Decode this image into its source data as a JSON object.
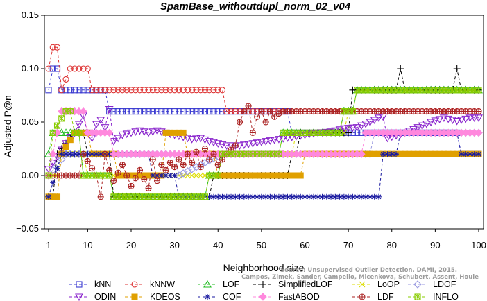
{
  "chart_data": {
    "type": "line",
    "title": "SpamBase_withoutdupl_norm_02_v04",
    "xlabel": "Neighborhood size",
    "ylabel": "Adjusted P@n",
    "xlim": [
      1,
      100
    ],
    "ylim": [
      -0.05,
      0.15
    ],
    "x_ticks": [
      1,
      10,
      20,
      30,
      40,
      50,
      60,
      70,
      80,
      90,
      100
    ],
    "y_ticks": [
      -0.05,
      0.0,
      0.05,
      0.1,
      0.15
    ],
    "y_tick_labels": [
      "−0.05",
      "0.00",
      "0.05",
      "0.10",
      "0.15"
    ],
    "legend_position": "bottom",
    "watermark": [
      "Source: Unsupervised Outlier Detection. DAMI, 2015.",
      "Campos, Zimek, Sander, Campello, Micenkova, Schubert, Assent, Houle"
    ],
    "series": [
      {
        "name": "kNN",
        "color": "#3a3ad0",
        "marker": "square",
        "points": [
          [
            1,
            0.08
          ],
          [
            2,
            0.1
          ],
          [
            3,
            0.1
          ],
          [
            4,
            0.08
          ],
          [
            14,
            0.08
          ],
          [
            15,
            0.06
          ],
          [
            56,
            0.06
          ],
          [
            57,
            0.04
          ],
          [
            95,
            0.04
          ],
          [
            96,
            0.02
          ],
          [
            100,
            0.02
          ]
        ]
      },
      {
        "name": "kNNW",
        "color": "#dd3333",
        "marker": "circle",
        "points": [
          [
            1,
            0.1
          ],
          [
            2,
            0.12
          ],
          [
            3,
            0.12
          ],
          [
            4,
            0.08
          ],
          [
            6,
            0.1
          ],
          [
            10,
            0.1
          ],
          [
            11,
            0.08
          ],
          [
            41,
            0.08
          ],
          [
            42,
            0.06
          ],
          [
            100,
            0.06
          ]
        ]
      },
      {
        "name": "LOF",
        "color": "#22bb22",
        "marker": "triangle-up",
        "points": [
          [
            1,
            0.02
          ],
          [
            2,
            0.04
          ],
          [
            8,
            0.04
          ],
          [
            9,
            0.0
          ],
          [
            15,
            0.0
          ],
          [
            16,
            -0.02
          ],
          [
            37,
            -0.02
          ],
          [
            38,
            0.0
          ],
          [
            40,
            0.0
          ],
          [
            41,
            0.02
          ],
          [
            54,
            0.02
          ],
          [
            55,
            0.04
          ],
          [
            68,
            0.04
          ],
          [
            69,
            0.06
          ],
          [
            71,
            0.06
          ],
          [
            72,
            0.08
          ],
          [
            100,
            0.08
          ]
        ]
      },
      {
        "name": "SimplifiedLOF",
        "color": "#000000",
        "marker": "plus",
        "points": [
          [
            1,
            -0.02
          ],
          [
            2,
            -0.02
          ],
          [
            3,
            0.02
          ],
          [
            7,
            0.04
          ],
          [
            9,
            0.04
          ],
          [
            10,
            0.02
          ],
          [
            15,
            0.02
          ],
          [
            16,
            -0.02
          ],
          [
            38,
            -0.02
          ],
          [
            39,
            0.0
          ],
          [
            56,
            0.0
          ],
          [
            57,
            0.02
          ],
          [
            58,
            0.02
          ],
          [
            59,
            0.04
          ],
          [
            70,
            0.04
          ],
          [
            71,
            0.08
          ],
          [
            81,
            0.08
          ],
          [
            82,
            0.1
          ],
          [
            83,
            0.08
          ],
          [
            94,
            0.08
          ],
          [
            95,
            0.1
          ],
          [
            96,
            0.08
          ],
          [
            100,
            0.08
          ]
        ]
      },
      {
        "name": "LoOP",
        "color": "#dddd00",
        "marker": "x",
        "points": [
          [
            1,
            0.0
          ],
          [
            3,
            0.0
          ],
          [
            4,
            0.02
          ],
          [
            9,
            0.02
          ],
          [
            10,
            0.0
          ],
          [
            40,
            0.0
          ],
          [
            41,
            0.02
          ],
          [
            57,
            0.02
          ],
          [
            58,
            0.04
          ],
          [
            69,
            0.04
          ],
          [
            70,
            0.06
          ],
          [
            71,
            0.06
          ],
          [
            72,
            0.08
          ],
          [
            100,
            0.08
          ]
        ]
      },
      {
        "name": "LDOF",
        "color": "#9a9ae0",
        "marker": "diamond",
        "points": [
          [
            1,
            0.0
          ],
          [
            5,
            0.02
          ],
          [
            30,
            0.02
          ],
          [
            31,
            0.0
          ],
          [
            41,
            0.02
          ],
          [
            75,
            0.02
          ],
          [
            76,
            0.04
          ],
          [
            100,
            0.04
          ]
        ]
      },
      {
        "name": "ODIN",
        "color": "#8822cc",
        "marker": "triangle-down",
        "points": [
          [
            1,
            0.006
          ],
          [
            2,
            0.012
          ],
          [
            3,
            0.018
          ],
          [
            4,
            0.024
          ],
          [
            5,
            0.03
          ],
          [
            6,
            0.036
          ],
          [
            7,
            0.04
          ],
          [
            8,
            0.048
          ],
          [
            9,
            0.056
          ],
          [
            10,
            0.04
          ],
          [
            11,
            0.035
          ],
          [
            12,
            0.048
          ],
          [
            13,
            0.052
          ],
          [
            14,
            0.045
          ],
          [
            15,
            0.062
          ],
          [
            16,
            0.032
          ],
          [
            18,
            0.038
          ],
          [
            20,
            0.04
          ],
          [
            22,
            0.042
          ],
          [
            24,
            0.04
          ],
          [
            26,
            0.042
          ],
          [
            28,
            0.04
          ],
          [
            30,
            0.038
          ],
          [
            32,
            0.036
          ],
          [
            34,
            0.034
          ],
          [
            36,
            0.035
          ],
          [
            38,
            0.032
          ],
          [
            40,
            0.03
          ],
          [
            42,
            0.028
          ],
          [
            45,
            0.028
          ],
          [
            48,
            0.03
          ],
          [
            51,
            0.032
          ],
          [
            54,
            0.034
          ],
          [
            57,
            0.036
          ],
          [
            60,
            0.038
          ],
          [
            63,
            0.04
          ],
          [
            66,
            0.041
          ],
          [
            69,
            0.044
          ],
          [
            72,
            0.045
          ],
          [
            75,
            0.05
          ],
          [
            77,
            0.054
          ],
          [
            78,
            0.055
          ],
          [
            79,
            0.035
          ],
          [
            83,
            0.04
          ],
          [
            86,
            0.045
          ],
          [
            89,
            0.05
          ],
          [
            92,
            0.054
          ],
          [
            95,
            0.051
          ],
          [
            98,
            0.054
          ],
          [
            100,
            0.054
          ]
        ]
      },
      {
        "name": "KDEOS",
        "color": "#e0a000",
        "marker": "square-filled",
        "points": [
          [
            1,
            -0.02
          ],
          [
            3,
            -0.02
          ],
          [
            4,
            0.02
          ],
          [
            7,
            0.04
          ],
          [
            10,
            0.04
          ],
          [
            11,
            0.02
          ],
          [
            16,
            0.02
          ],
          [
            17,
            0.0
          ],
          [
            27,
            0.0
          ],
          [
            28,
            0.04
          ],
          [
            32,
            0.04
          ],
          [
            33,
            0.02
          ],
          [
            39,
            0.02
          ],
          [
            40,
            0.0
          ],
          [
            58,
            0.0
          ],
          [
            59,
            0.0
          ],
          [
            60,
            0.02
          ],
          [
            95,
            0.02
          ],
          [
            96,
            0.02
          ],
          [
            100,
            0.02
          ]
        ]
      },
      {
        "name": "COF",
        "color": "#1a1aa0",
        "marker": "star",
        "points": [
          [
            1,
            -0.02
          ],
          [
            4,
            0.02
          ],
          [
            24,
            0.02
          ],
          [
            25,
            0.0
          ],
          [
            30,
            0.0
          ],
          [
            31,
            -0.02
          ],
          [
            77,
            -0.02
          ],
          [
            78,
            0.02
          ],
          [
            81,
            0.02
          ],
          [
            82,
            0.04
          ],
          [
            95,
            0.04
          ],
          [
            96,
            0.02
          ],
          [
            100,
            0.02
          ]
        ]
      },
      {
        "name": "FastABOD",
        "color": "#ff88dd",
        "marker": "diamond-filled",
        "points": [
          [
            1,
            0.0
          ],
          [
            4,
            0.06
          ],
          [
            9,
            0.06
          ],
          [
            10,
            0.04
          ],
          [
            15,
            0.04
          ],
          [
            16,
            0.02
          ],
          [
            30,
            0.02
          ],
          [
            31,
            0.02
          ],
          [
            73,
            0.02
          ],
          [
            74,
            0.04
          ],
          [
            100,
            0.04
          ]
        ]
      },
      {
        "name": "LDF",
        "color": "#aa2222",
        "marker": "circle-plus",
        "points": [
          [
            1,
            0.0
          ],
          [
            8,
            0.0
          ],
          [
            9,
            0.02
          ],
          [
            12,
            0.0
          ],
          [
            13,
            -0.02
          ],
          [
            14,
            0.02
          ],
          [
            15,
            0.005
          ],
          [
            16,
            -0.005
          ],
          [
            18,
            0.01
          ],
          [
            20,
            -0.01
          ],
          [
            22,
            0.005
          ],
          [
            24,
            -0.012
          ],
          [
            25,
            0.015
          ],
          [
            26,
            -0.005
          ],
          [
            27,
            0.01
          ],
          [
            28,
            0.005
          ],
          [
            29,
            0.012
          ],
          [
            30,
            0.008
          ],
          [
            31,
            0.015
          ],
          [
            32,
            0.01
          ],
          [
            33,
            0.02
          ],
          [
            34,
            0.012
          ],
          [
            35,
            0.022
          ],
          [
            36,
            0.008
          ],
          [
            37,
            0.025
          ],
          [
            38,
            0.015
          ],
          [
            39,
            0.02
          ],
          [
            40,
            0.01
          ],
          [
            42,
            0.02
          ],
          [
            44,
            0.028
          ],
          [
            45,
            0.05
          ],
          [
            46,
            0.06
          ],
          [
            47,
            0.065
          ],
          [
            48,
            0.04
          ],
          [
            49,
            0.055
          ],
          [
            50,
            0.06
          ],
          [
            51,
            0.05
          ],
          [
            52,
            0.06
          ],
          [
            53,
            0.055
          ],
          [
            54,
            0.058
          ],
          [
            55,
            0.06
          ],
          [
            56,
            0.06
          ],
          [
            57,
            0.06
          ],
          [
            100,
            0.06
          ]
        ]
      },
      {
        "name": "INFLO",
        "color": "#88cc00",
        "marker": "star-square",
        "points": [
          [
            1,
            0.0
          ],
          [
            2,
            0.04
          ],
          [
            5,
            0.06
          ],
          [
            6,
            0.06
          ],
          [
            7,
            0.04
          ],
          [
            8,
            0.04
          ],
          [
            9,
            0.0
          ],
          [
            15,
            0.0
          ],
          [
            16,
            -0.02
          ],
          [
            37,
            -0.02
          ],
          [
            38,
            0.0
          ],
          [
            40,
            0.0
          ],
          [
            41,
            0.02
          ],
          [
            54,
            0.02
          ],
          [
            55,
            0.04
          ],
          [
            68,
            0.04
          ],
          [
            69,
            0.06
          ],
          [
            71,
            0.06
          ],
          [
            72,
            0.08
          ],
          [
            100,
            0.08
          ]
        ]
      }
    ]
  }
}
